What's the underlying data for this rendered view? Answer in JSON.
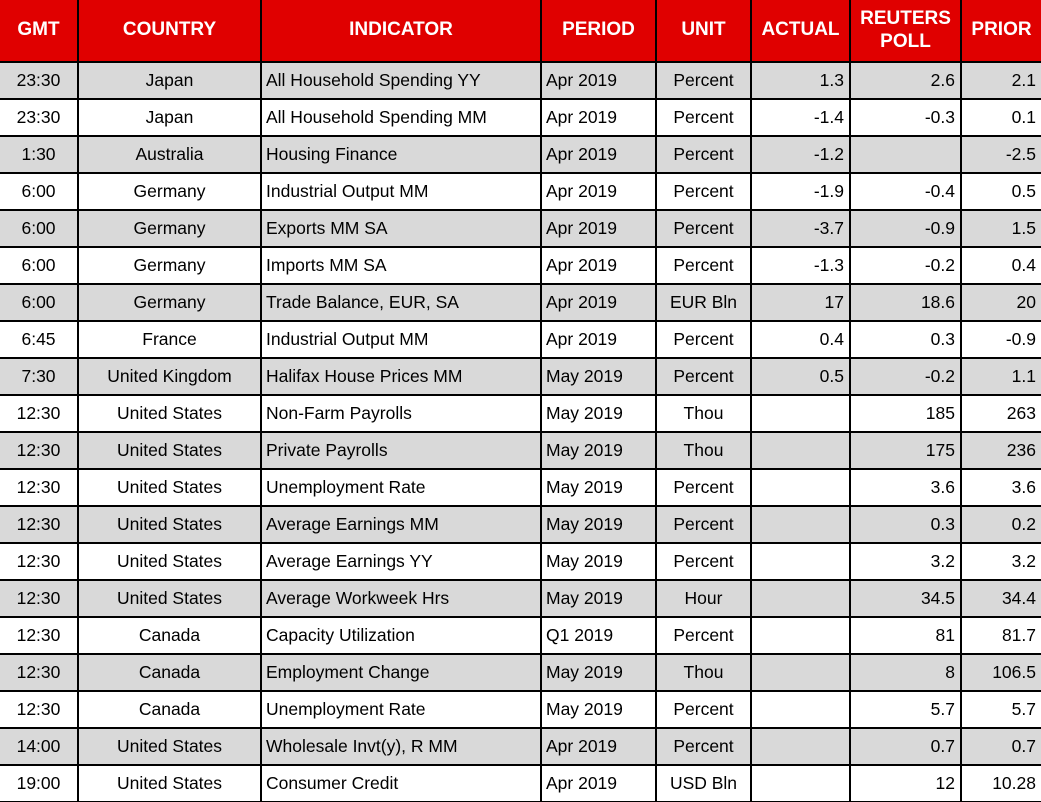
{
  "chart_data": {
    "type": "table",
    "columns": [
      "GMT",
      "COUNTRY",
      "INDICATOR",
      "PERIOD",
      "UNIT",
      "ACTUAL",
      "REUTERS POLL",
      "PRIOR"
    ],
    "rows": [
      {
        "gmt": "23:30",
        "country": "Japan",
        "indicator": "All Household Spending YY",
        "period": "Apr 2019",
        "unit": "Percent",
        "actual": "1.3",
        "poll": "2.6",
        "prior": "2.1"
      },
      {
        "gmt": "23:30",
        "country": "Japan",
        "indicator": "All Household Spending MM",
        "period": "Apr 2019",
        "unit": "Percent",
        "actual": "-1.4",
        "poll": "-0.3",
        "prior": "0.1",
        "indicator_wrap": true
      },
      {
        "gmt": "1:30",
        "country": "Australia",
        "indicator": "Housing Finance",
        "period": "Apr 2019",
        "unit": "Percent",
        "actual": "-1.2",
        "poll": "",
        "prior": "-2.5"
      },
      {
        "gmt": "6:00",
        "country": "Germany",
        "indicator": "Industrial Output MM",
        "period": "Apr 2019",
        "unit": "Percent",
        "actual": "-1.9",
        "poll": "-0.4",
        "prior": "0.5"
      },
      {
        "gmt": "6:00",
        "country": "Germany",
        "indicator": "Exports MM SA",
        "period": "Apr 2019",
        "unit": "Percent",
        "actual": "-3.7",
        "poll": "-0.9",
        "prior": "1.5"
      },
      {
        "gmt": "6:00",
        "country": "Germany",
        "indicator": "Imports MM SA",
        "period": "Apr 2019",
        "unit": "Percent",
        "actual": "-1.3",
        "poll": "-0.2",
        "prior": "0.4"
      },
      {
        "gmt": "6:00",
        "country": "Germany",
        "indicator": "Trade Balance, EUR, SA",
        "period": "Apr 2019",
        "unit": "EUR Bln",
        "actual": "17",
        "poll": "18.6",
        "prior": "20"
      },
      {
        "gmt": "6:45",
        "country": "France",
        "indicator": "Industrial Output MM",
        "period": "Apr 2019",
        "unit": "Percent",
        "actual": "0.4",
        "poll": "0.3",
        "prior": "-0.9"
      },
      {
        "gmt": "7:30",
        "country": "United Kingdom",
        "indicator": "Halifax House Prices MM",
        "period": "May 2019",
        "unit": "Percent",
        "actual": "0.5",
        "poll": "-0.2",
        "prior": "1.1"
      },
      {
        "gmt": "12:30",
        "country": "United States",
        "indicator": "Non-Farm Payrolls",
        "period": "May 2019",
        "unit": "Thou",
        "actual": "",
        "poll": "185",
        "prior": "263"
      },
      {
        "gmt": "12:30",
        "country": "United States",
        "indicator": "Private Payrolls",
        "period": "May 2019",
        "unit": "Thou",
        "actual": "",
        "poll": "175",
        "prior": "236"
      },
      {
        "gmt": "12:30",
        "country": "United States",
        "indicator": "Unemployment Rate",
        "period": "May 2019",
        "unit": "Percent",
        "actual": "",
        "poll": "3.6",
        "prior": "3.6"
      },
      {
        "gmt": "12:30",
        "country": "United States",
        "indicator": "Average Earnings MM",
        "period": "May 2019",
        "unit": "Percent",
        "actual": "",
        "poll": "0.3",
        "prior": "0.2"
      },
      {
        "gmt": "12:30",
        "country": "United States",
        "indicator": "Average Earnings YY",
        "period": "May 2019",
        "unit": "Percent",
        "actual": "",
        "poll": "3.2",
        "prior": "3.2"
      },
      {
        "gmt": "12:30",
        "country": "United States",
        "indicator": "Average Workweek Hrs",
        "period": "May 2019",
        "unit": "Hour",
        "actual": "",
        "poll": "34.5",
        "prior": "34.4"
      },
      {
        "gmt": "12:30",
        "country": "Canada",
        "indicator": "Capacity Utilization",
        "period": "Q1 2019",
        "unit": "Percent",
        "actual": "",
        "poll": "81",
        "prior": "81.7"
      },
      {
        "gmt": "12:30",
        "country": "Canada",
        "indicator": "Employment Change",
        "period": "May 2019",
        "unit": "Thou",
        "actual": "",
        "poll": "8",
        "prior": "106.5"
      },
      {
        "gmt": "12:30",
        "country": "Canada",
        "indicator": "Unemployment Rate",
        "period": "May 2019",
        "unit": "Percent",
        "actual": "",
        "poll": "5.7",
        "prior": "5.7"
      },
      {
        "gmt": "14:00",
        "country": "United States",
        "indicator": "Wholesale Invt(y), R MM",
        "period": "Apr 2019",
        "unit": "Percent",
        "actual": "",
        "poll": "0.7",
        "prior": "0.7"
      },
      {
        "gmt": "19:00",
        "country": "United States",
        "indicator": "Consumer Credit",
        "period": "Apr 2019",
        "unit": "USD Bln",
        "actual": "",
        "poll": "12",
        "prior": "10.28"
      }
    ]
  },
  "colors": {
    "header_bg": "#e00000",
    "header_text": "#ffffff",
    "row_stripe": "#d9d9d9",
    "row_plain": "#ffffff",
    "grid": "#000000"
  }
}
